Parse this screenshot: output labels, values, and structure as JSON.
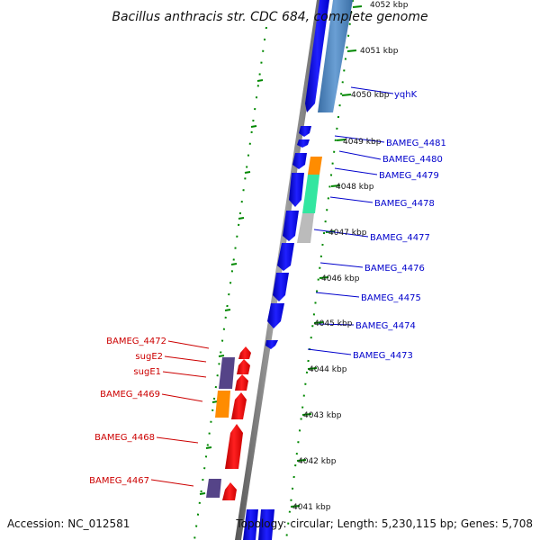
{
  "title": "Bacillus anthracis str. CDC 684, complete genome",
  "footer": {
    "accession": "Accession: NC_012581",
    "topology": "Topology: circular; Length: 5,230,115 bp; Genes: 5,708"
  },
  "colors": {
    "forward_gene": "#0000ee",
    "reverse_gene": "#ee0000",
    "rna_long": "#4a7ebb",
    "orange": "#ff8c00",
    "green": "#33e6a0",
    "grey": "#bbbbbb",
    "purple": "#554488",
    "tick_green": "#008800",
    "blue_label": "#0000cc",
    "red_label": "#cc0000"
  },
  "kbp_ticks": [
    "4052 kbp",
    "4051 kbp",
    "4050 kbp",
    "4049 kbp",
    "4048 kbp",
    "4047 kbp",
    "4046 kbp",
    "4045 kbp",
    "4044 kbp",
    "4043 kbp",
    "4042 kbp",
    "4041 kbp"
  ],
  "forward_labels": [
    "yqhK",
    "BAMEG_4481",
    "BAMEG_4480",
    "BAMEG_4479",
    "BAMEG_4478",
    "BAMEG_4477",
    "BAMEG_4476",
    "BAMEG_4475",
    "BAMEG_4474",
    "BAMEG_4473"
  ],
  "reverse_labels": [
    "BAMEG_4472",
    "sugE2",
    "sugE1",
    "BAMEG_4469",
    "BAMEG_4468",
    "BAMEG_4467"
  ]
}
